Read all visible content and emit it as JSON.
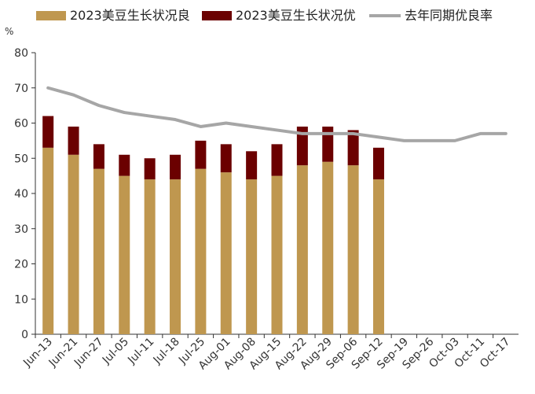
{
  "chart_data": {
    "type": "bar",
    "title": "",
    "xlabel": "",
    "ylabel": "",
    "unit": "%",
    "ylim": [
      0,
      80
    ],
    "yticks": [
      0,
      10,
      20,
      30,
      40,
      50,
      60,
      70,
      80
    ],
    "grid": false,
    "legend_position": "top",
    "categories": [
      "Jun-13",
      "Jun-21",
      "Jun-27",
      "Jul-05",
      "Jul-11",
      "Jul-18",
      "Jul-25",
      "Aug-01",
      "Aug-08",
      "Aug-15",
      "Aug-22",
      "Aug-29",
      "Sep-06",
      "Sep-12",
      "Sep-19",
      "Sep-26",
      "Oct-03",
      "Oct-11",
      "Oct-17"
    ],
    "series": [
      {
        "name": "2023美豆生长状况良",
        "kind": "bar-stacked",
        "color": "#BF974F",
        "values": [
          53,
          51,
          47,
          45,
          44,
          44,
          47,
          46,
          44,
          45,
          48,
          49,
          48,
          44,
          null,
          null,
          null,
          null,
          null
        ]
      },
      {
        "name": "2023美豆生长状况优",
        "kind": "bar-stacked",
        "color": "#6B0000",
        "values": [
          9,
          8,
          7,
          6,
          6,
          7,
          8,
          8,
          8,
          9,
          11,
          10,
          10,
          9,
          null,
          null,
          null,
          null,
          null
        ]
      },
      {
        "name": "去年同期优良率",
        "kind": "line",
        "color": "#A6A6A6",
        "values": [
          70,
          68,
          65,
          63,
          62,
          61,
          59,
          60,
          59,
          58,
          57,
          57,
          57,
          56,
          55,
          55,
          55,
          57,
          57
        ]
      }
    ]
  }
}
